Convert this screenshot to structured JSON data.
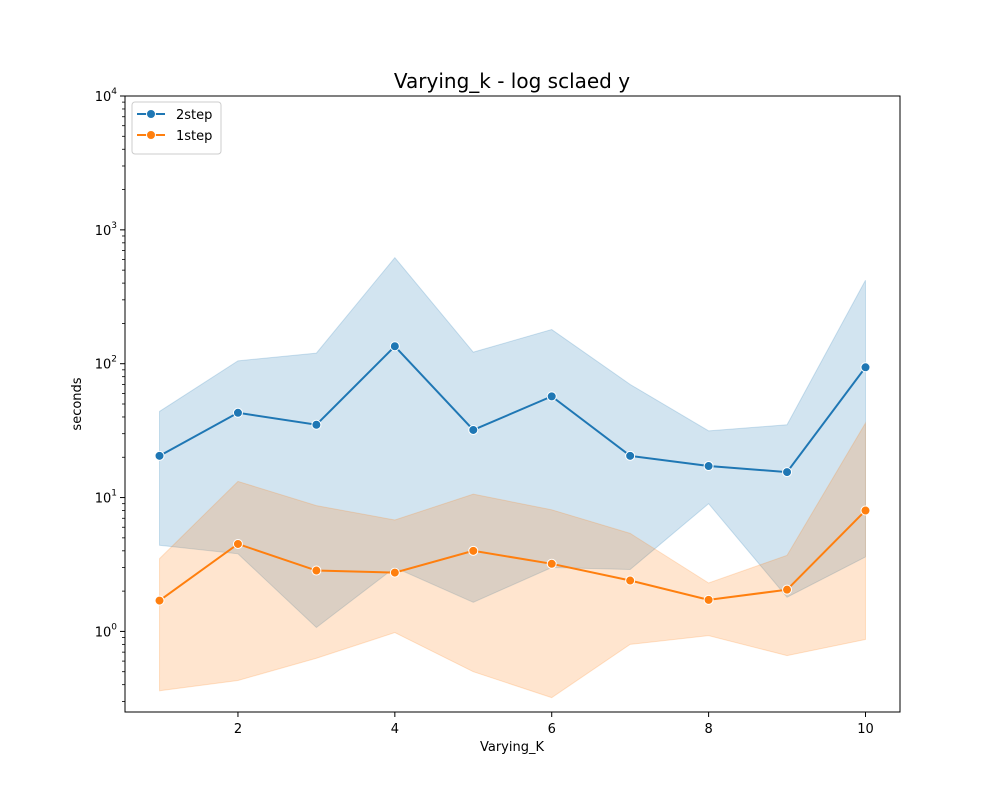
{
  "chart_data": {
    "type": "line",
    "title": "Varying_k - log sclaed y",
    "xlabel": "Varying_K",
    "ylabel": "seconds",
    "yscale": "log",
    "xlim": [
      0.56,
      10.44
    ],
    "ylim": [
      0.25,
      10000
    ],
    "x": [
      1,
      2,
      3,
      4,
      5,
      6,
      7,
      8,
      9,
      10
    ],
    "x_ticks": [
      2,
      4,
      6,
      8,
      10
    ],
    "y_ticks": [
      {
        "value": 1,
        "base": "10",
        "exp": "0"
      },
      {
        "value": 10,
        "base": "10",
        "exp": "1"
      },
      {
        "value": 100,
        "base": "10",
        "exp": "2"
      },
      {
        "value": 1000,
        "base": "10",
        "exp": "3"
      },
      {
        "value": 10000,
        "base": "10",
        "exp": "4"
      }
    ],
    "legend_position": "upper-left",
    "series": [
      {
        "name": "2step",
        "color": "#1f77b4",
        "values": [
          20.5,
          43,
          35,
          135,
          32,
          57,
          20.5,
          17.2,
          15.5,
          94
        ],
        "lower": [
          4.4,
          3.8,
          1.07,
          3.0,
          1.65,
          3.0,
          2.9,
          9.0,
          1.8,
          3.6
        ],
        "upper": [
          44,
          105,
          120,
          620,
          122,
          180,
          70,
          31.5,
          35,
          420
        ]
      },
      {
        "name": "1step",
        "color": "#ff7f0e",
        "values": [
          1.7,
          4.5,
          2.85,
          2.75,
          4.0,
          3.2,
          2.4,
          1.72,
          2.05,
          8.0
        ],
        "lower": [
          0.36,
          0.43,
          0.63,
          0.98,
          0.5,
          0.32,
          0.8,
          0.93,
          0.66,
          0.87
        ],
        "upper": [
          3.5,
          13.2,
          8.7,
          6.8,
          10.6,
          8.1,
          5.4,
          2.3,
          3.7,
          36
        ]
      }
    ]
  }
}
